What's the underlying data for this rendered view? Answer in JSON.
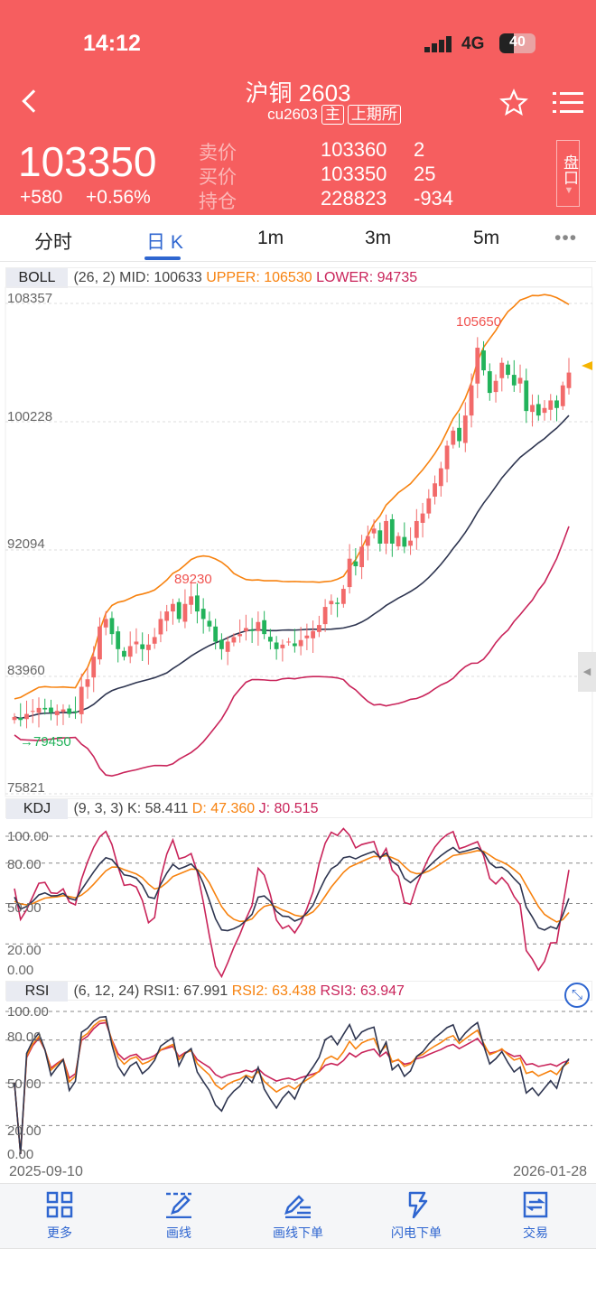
{
  "status": {
    "time": "14:12",
    "network": "4G",
    "battery": "40"
  },
  "header": {
    "title": "沪铜 2603",
    "code": "cu2603",
    "tag_main": "主",
    "exchange": "上期所",
    "price": "103350",
    "change": "+580",
    "change_pct": "+0.56%",
    "ask_label": "卖价",
    "ask_price": "103360",
    "ask_vol": "2",
    "bid_label": "买价",
    "bid_price": "103350",
    "bid_vol": "25",
    "oi_label": "持仓",
    "oi": "228823",
    "oi_change": "-934",
    "panel_btn": "盘口"
  },
  "tabs": [
    {
      "label": "分时"
    },
    {
      "label": "日 K",
      "active": true
    },
    {
      "label": "1m"
    },
    {
      "label": "3m"
    },
    {
      "label": "5m"
    }
  ],
  "boll": {
    "name": "BOLL",
    "params": "(26, 2) MID: 100633",
    "upper": "UPPER: 106530",
    "lower": "LOWER: 94735",
    "axis": [
      "108357",
      "100228",
      "92094",
      "83960",
      "75821"
    ],
    "high_mark": "105650",
    "high_mark2": "89230",
    "low_mark": "79450"
  },
  "kdj": {
    "name": "KDJ",
    "params": "(9, 3, 3) K: 58.411",
    "d": "D: 47.360",
    "j": "J: 80.515",
    "axis": [
      "100.00",
      "80.00",
      "50.00",
      "20.00",
      "0.00"
    ]
  },
  "rsi": {
    "name": "RSI",
    "params": "(6, 12, 24) RSI1: 67.991",
    "r2": "RSI2: 63.438",
    "r3": "RSI3: 63.947",
    "axis": [
      "100.00",
      "80.00",
      "50.00",
      "20.00",
      "0.00"
    ]
  },
  "dates": {
    "start": "2025-09-10",
    "end": "2026-01-28"
  },
  "toolbar": [
    {
      "label": "更多",
      "icon": "grid-icon"
    },
    {
      "label": "画线",
      "icon": "draw-line-icon"
    },
    {
      "label": "画线下单",
      "icon": "draw-order-icon"
    },
    {
      "label": "闪电下单",
      "icon": "lightning-icon"
    },
    {
      "label": "交易",
      "icon": "trade-icon"
    }
  ],
  "colors": {
    "header": "#f65e5f",
    "up": "#f26a6a",
    "down": "#22b35b",
    "mid": "#2e3550",
    "upper": "#f7820f",
    "lower": "#c9245a",
    "accent": "#2f66d0"
  },
  "chart_data": {
    "type": "candlestick",
    "ylim": [
      75821,
      108357
    ],
    "closes": [
      80500,
      80300,
      80700,
      80900,
      81100,
      81000,
      80800,
      80900,
      81000,
      80700,
      80800,
      82500,
      83000,
      84500,
      86500,
      87000,
      86000,
      85000,
      84500,
      85200,
      85500,
      85000,
      85300,
      85800,
      87000,
      87500,
      88000,
      87000,
      88000,
      88500,
      87500,
      87000,
      86500,
      85500,
      85000,
      85500,
      85800,
      86000,
      86400,
      86200,
      86800,
      86000,
      85500,
      85000,
      85300,
      85500,
      85200,
      85600,
      85900,
      86200,
      86600,
      87800,
      88200,
      88000,
      89000,
      91000,
      90500,
      91800,
      92500,
      93000,
      92000,
      93500,
      92000,
      92500,
      91800,
      92200,
      93500,
      94000,
      95000,
      96000,
      97000,
      98500,
      99500,
      98800,
      100500,
      102500,
      105000,
      103500,
      102000,
      102800,
      104000,
      103200,
      102500,
      103000,
      100800,
      101200,
      100500,
      101000,
      101500,
      101000,
      102500,
      103350
    ]
  }
}
